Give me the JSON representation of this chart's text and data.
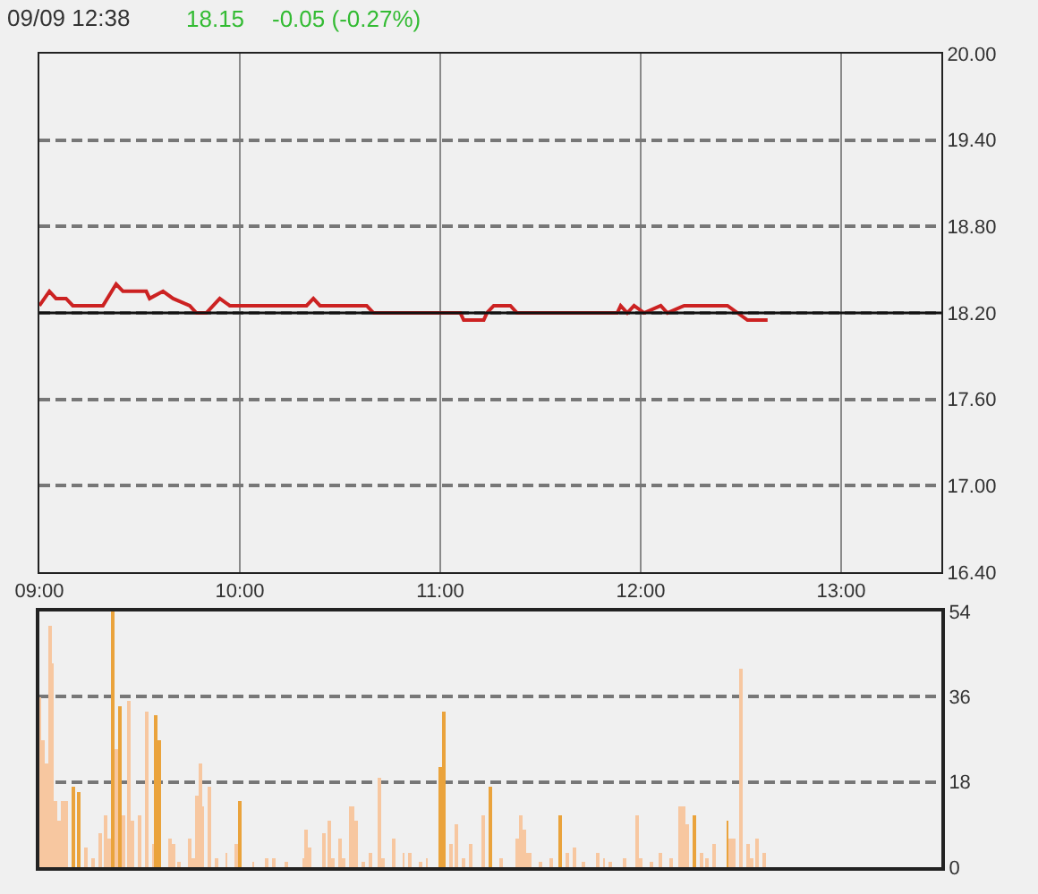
{
  "chart_data": [
    {
      "type": "line",
      "title": "09/09 12:38",
      "annotations": [
        "18.15",
        "-0.05 (-0.27%)"
      ],
      "x": [
        9.0,
        9.05,
        9.083,
        9.133,
        9.167,
        9.317,
        9.383,
        9.417,
        9.533,
        9.55,
        9.617,
        9.667,
        9.75,
        9.783,
        9.833,
        9.867,
        9.9,
        9.95,
        10.333,
        10.367,
        10.4,
        10.633,
        10.667,
        11.1,
        11.117,
        11.217,
        11.233,
        11.267,
        11.35,
        11.383,
        11.883,
        11.9,
        11.933,
        11.967,
        12.017,
        12.1,
        12.133,
        12.217,
        12.433,
        12.483,
        12.533,
        12.633
      ],
      "series": [
        {
          "color": "#cc2222",
          "values": [
            18.25,
            18.35,
            18.3,
            18.3,
            18.25,
            18.25,
            18.4,
            18.35,
            18.35,
            18.3,
            18.35,
            18.3,
            18.25,
            18.2,
            18.2,
            18.25,
            18.3,
            18.25,
            18.25,
            18.3,
            18.25,
            18.25,
            18.2,
            18.2,
            18.15,
            18.15,
            18.2,
            18.25,
            18.25,
            18.2,
            18.2,
            18.25,
            18.2,
            18.25,
            18.2,
            18.25,
            18.2,
            18.25,
            18.25,
            18.2,
            18.15,
            18.15
          ]
        }
      ],
      "line_style": "solid",
      "xlim": [
        9,
        13.5
      ],
      "xticks": [
        {
          "value": 9,
          "label": "09:00"
        },
        {
          "value": 10,
          "label": "10:00"
        },
        {
          "value": 11,
          "label": "11:00"
        },
        {
          "value": 12,
          "label": "12:00"
        },
        {
          "value": 13,
          "label": "13:00"
        }
      ],
      "ylim": [
        16.4,
        20
      ],
      "yticks": [
        {
          "value": 16.4,
          "label": "16.40"
        },
        {
          "value": 17,
          "label": "17.00"
        },
        {
          "value": 17.6,
          "label": "17.60"
        },
        {
          "value": 18.2,
          "label": "18.20"
        },
        {
          "value": 18.8,
          "label": "18.80"
        },
        {
          "value": 19.4,
          "label": "19.40"
        },
        {
          "value": 20,
          "label": "20.00"
        }
      ],
      "grid": true,
      "ref_lines": [
        {
          "axis": "y",
          "value": 18.2,
          "color": "#111111"
        }
      ]
    },
    {
      "type": "bar",
      "x": [
        9.0,
        9.017,
        9.033,
        9.05,
        9.067,
        9.083,
        9.1,
        9.117,
        9.133,
        9.167,
        9.2,
        9.233,
        9.267,
        9.3,
        9.333,
        9.35,
        9.367,
        9.383,
        9.4,
        9.417,
        9.45,
        9.467,
        9.5,
        9.533,
        9.567,
        9.583,
        9.6,
        9.65,
        9.667,
        9.7,
        9.75,
        9.767,
        9.783,
        9.8,
        9.817,
        9.85,
        9.883,
        9.933,
        9.983,
        10.0,
        10.067,
        10.133,
        10.167,
        10.233,
        10.317,
        10.333,
        10.35,
        10.417,
        10.45,
        10.467,
        10.5,
        10.517,
        10.55,
        10.567,
        10.583,
        10.617,
        10.65,
        10.7,
        10.717,
        10.767,
        10.817,
        10.85,
        10.9,
        10.933,
        11.0,
        11.017,
        11.05,
        11.083,
        11.117,
        11.15,
        11.217,
        11.25,
        11.3,
        11.383,
        11.4,
        11.417,
        11.433,
        11.45,
        11.5,
        11.55,
        11.6,
        11.633,
        11.667,
        11.717,
        11.783,
        11.817,
        11.85,
        11.917,
        11.983,
        12.0,
        12.05,
        12.1,
        12.15,
        12.2,
        12.217,
        12.233,
        12.267,
        12.3,
        12.333,
        12.367,
        12.433,
        12.45,
        12.467,
        12.5,
        12.533,
        12.55,
        12.583,
        12.617
      ],
      "values": [
        36,
        27,
        22,
        51,
        43,
        14,
        10,
        14,
        14,
        17,
        16,
        4,
        2,
        7,
        11,
        6,
        54,
        25,
        34,
        11,
        35,
        10,
        11,
        33,
        5,
        32,
        27,
        6,
        5,
        1,
        6,
        2,
        15,
        22,
        13,
        17,
        2,
        3,
        5,
        14,
        1,
        2,
        2,
        1,
        2,
        8,
        4,
        7,
        10,
        2,
        6,
        2,
        13,
        13,
        10,
        1,
        3,
        19,
        2,
        6,
        3,
        3,
        1,
        2,
        21,
        33,
        5,
        9,
        2,
        5,
        11,
        17,
        2,
        6,
        11,
        8,
        3,
        3,
        1,
        2,
        11,
        3,
        4,
        1,
        3,
        2,
        1,
        2,
        11,
        2,
        1,
        3,
        2,
        13,
        13,
        9,
        11,
        3,
        2,
        5,
        10,
        6,
        6,
        42,
        5,
        2,
        6,
        3
      ],
      "colors": [
        "#f7c7a0",
        "#f7c7a0",
        "#f7c7a0",
        "#f7c7a0",
        "#f7c7a0",
        "#f7c7a0",
        "#f7c7a0",
        "#f7c7a0",
        "#f7c7a0",
        "#eaa33c",
        "#eaa33c",
        "#f7c7a0",
        "#f7c7a0",
        "#f7c7a0",
        "#f7c7a0",
        "#f7c7a0",
        "#eaa33c",
        "#f7c7a0",
        "#eaa33c",
        "#f7c7a0",
        "#f7c7a0",
        "#f7c7a0",
        "#f7c7a0",
        "#f7c7a0",
        "#f7c7a0",
        "#eaa33c",
        "#eaa33c",
        "#f7c7a0",
        "#f7c7a0",
        "#f7c7a0",
        "#f7c7a0",
        "#f7c7a0",
        "#f7c7a0",
        "#f7c7a0",
        "#f7c7a0",
        "#f7c7a0",
        "#f7c7a0",
        "#f7c7a0",
        "#f7c7a0",
        "#eaa33c",
        "#f7c7a0",
        "#f7c7a0",
        "#f7c7a0",
        "#f7c7a0",
        "#f7c7a0",
        "#f7c7a0",
        "#f7c7a0",
        "#f7c7a0",
        "#f7c7a0",
        "#f7c7a0",
        "#f7c7a0",
        "#f7c7a0",
        "#f7c7a0",
        "#f7c7a0",
        "#f7c7a0",
        "#f7c7a0",
        "#f7c7a0",
        "#f7c7a0",
        "#f7c7a0",
        "#f7c7a0",
        "#f7c7a0",
        "#f7c7a0",
        "#f7c7a0",
        "#f7c7a0",
        "#eaa33c",
        "#eaa33c",
        "#f7c7a0",
        "#f7c7a0",
        "#f7c7a0",
        "#f7c7a0",
        "#f7c7a0",
        "#eaa33c",
        "#f7c7a0",
        "#f7c7a0",
        "#f7c7a0",
        "#f7c7a0",
        "#f7c7a0",
        "#f7c7a0",
        "#f7c7a0",
        "#f7c7a0",
        "#eaa33c",
        "#f7c7a0",
        "#f7c7a0",
        "#f7c7a0",
        "#f7c7a0",
        "#f7c7a0",
        "#f7c7a0",
        "#f7c7a0",
        "#f7c7a0",
        "#f7c7a0",
        "#f7c7a0",
        "#f7c7a0",
        "#f7c7a0",
        "#f7c7a0",
        "#f7c7a0",
        "#f7c7a0",
        "#eaa33c",
        "#f7c7a0",
        "#f7c7a0",
        "#f7c7a0",
        "#eaa33c",
        "#f7c7a0",
        "#f7c7a0",
        "#f7c7a0",
        "#f7c7a0",
        "#f7c7a0",
        "#f7c7a0",
        "#f7c7a0"
      ],
      "xlim": [
        9,
        13.5
      ],
      "ylim": [
        0,
        54
      ],
      "yticks": [
        0,
        18,
        36,
        54
      ],
      "grid": "y",
      "tick_labels": "y"
    }
  ]
}
